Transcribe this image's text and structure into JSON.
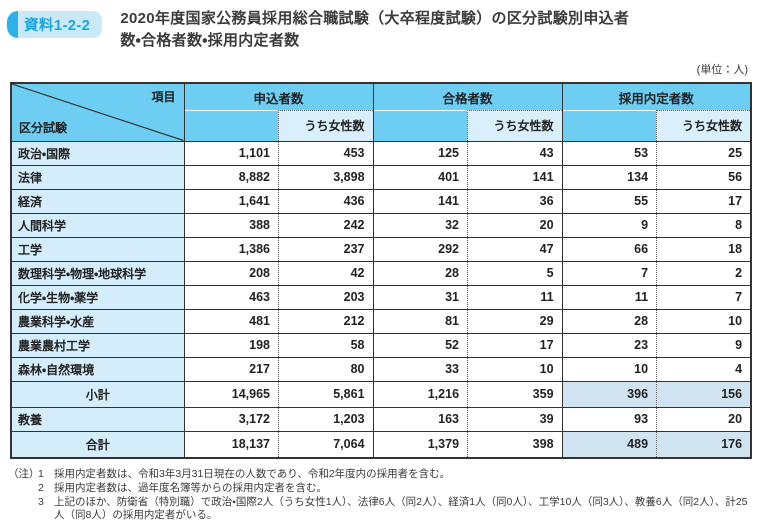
{
  "badge": "資料1-2-2",
  "title": {
    "line1": "2020年度国家公務員採用総合職試験（大卒程度試験）の区分試験別申込者",
    "line2": "数・合格者数・採用内定者数"
  },
  "unit_label": "(単位：人)",
  "colors": {
    "header_blue": "#6ecdf3",
    "light_blue": "#d4edfb",
    "highlight_blue": "#cfe3f1",
    "badge_cap_blue": "#2cb2e8",
    "badge_bg_blue": "#c9e9f8",
    "badge_text_blue": "#17a5e0",
    "border_dark": "#333333"
  },
  "table": {
    "corner": {
      "top_right": "項目",
      "bottom_left": "区分試験"
    },
    "groups": [
      "申込者数",
      "合格者数",
      "採用内定者数"
    ],
    "subheader": "うち女性数",
    "rows": [
      {
        "label": "政治・国際",
        "type": "data",
        "values": [
          "1,101",
          "453",
          "125",
          "43",
          "53",
          "25"
        ]
      },
      {
        "label": "法律",
        "type": "data",
        "values": [
          "8,882",
          "3,898",
          "401",
          "141",
          "134",
          "56"
        ]
      },
      {
        "label": "経済",
        "type": "data",
        "values": [
          "1,641",
          "436",
          "141",
          "36",
          "55",
          "17"
        ]
      },
      {
        "label": "人間科学",
        "type": "data",
        "values": [
          "388",
          "242",
          "32",
          "20",
          "9",
          "8"
        ]
      },
      {
        "label": "工学",
        "type": "data",
        "values": [
          "1,386",
          "237",
          "292",
          "47",
          "66",
          "18"
        ]
      },
      {
        "label": "数理科学・物理・地球科学",
        "type": "data",
        "values": [
          "208",
          "42",
          "28",
          "5",
          "7",
          "2"
        ]
      },
      {
        "label": "化学・生物・薬学",
        "type": "data",
        "values": [
          "463",
          "203",
          "31",
          "11",
          "11",
          "7"
        ]
      },
      {
        "label": "農業科学・水産",
        "type": "data",
        "values": [
          "481",
          "212",
          "81",
          "29",
          "28",
          "10"
        ]
      },
      {
        "label": "農業農村工学",
        "type": "data",
        "values": [
          "198",
          "58",
          "52",
          "17",
          "23",
          "9"
        ]
      },
      {
        "label": "森林・自然環境",
        "type": "data",
        "values": [
          "217",
          "80",
          "33",
          "10",
          "10",
          "4"
        ]
      },
      {
        "label": "小計",
        "type": "subtotal",
        "values": [
          "14,965",
          "5,861",
          "1,216",
          "359",
          "396",
          "156"
        ]
      },
      {
        "label": "教養",
        "type": "data",
        "values": [
          "3,172",
          "1,203",
          "163",
          "39",
          "93",
          "20"
        ]
      },
      {
        "label": "合計",
        "type": "total",
        "values": [
          "18,137",
          "7,064",
          "1,379",
          "398",
          "489",
          "176"
        ]
      }
    ]
  },
  "notes": {
    "prefix": "（注）",
    "items": [
      {
        "num": "1",
        "text": "採用内定者数は、令和3年3月31日現在の人数であり、令和2年度内の採用者を含む。"
      },
      {
        "num": "2",
        "text": "採用内定者数は、過年度名簿等からの採用内定者を含む。"
      },
      {
        "num": "3",
        "text": "上記のほか、防衛省（特別職）で政治・国際2人（うち女性1人）、法律6人（同2人）、経済1人（同0人）、工学10人（同3人）、教養6人（同2人）、計25人（同8人）の採用内定者がいる。"
      }
    ]
  }
}
